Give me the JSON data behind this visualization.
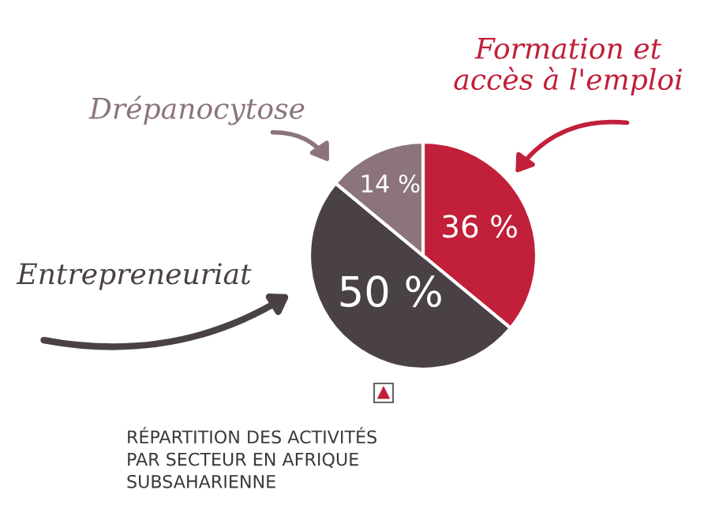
{
  "chart_data": {
    "type": "pie",
    "categories": [
      "Formation et\naccès à l'emploi",
      "Entrepreneuriat",
      "Drépanocytose"
    ],
    "values": [
      36,
      50,
      14
    ],
    "colors": [
      "#c11f3a",
      "#4a4146",
      "#8b747a"
    ],
    "value_labels": [
      "36 %",
      "50 %",
      "14 %"
    ],
    "annotations": [
      "RÉPARTITION DES ACTIVITÉS\nPAR SECTEUR EN AFRIQUE\nSUBSAHARIENNE"
    ]
  }
}
